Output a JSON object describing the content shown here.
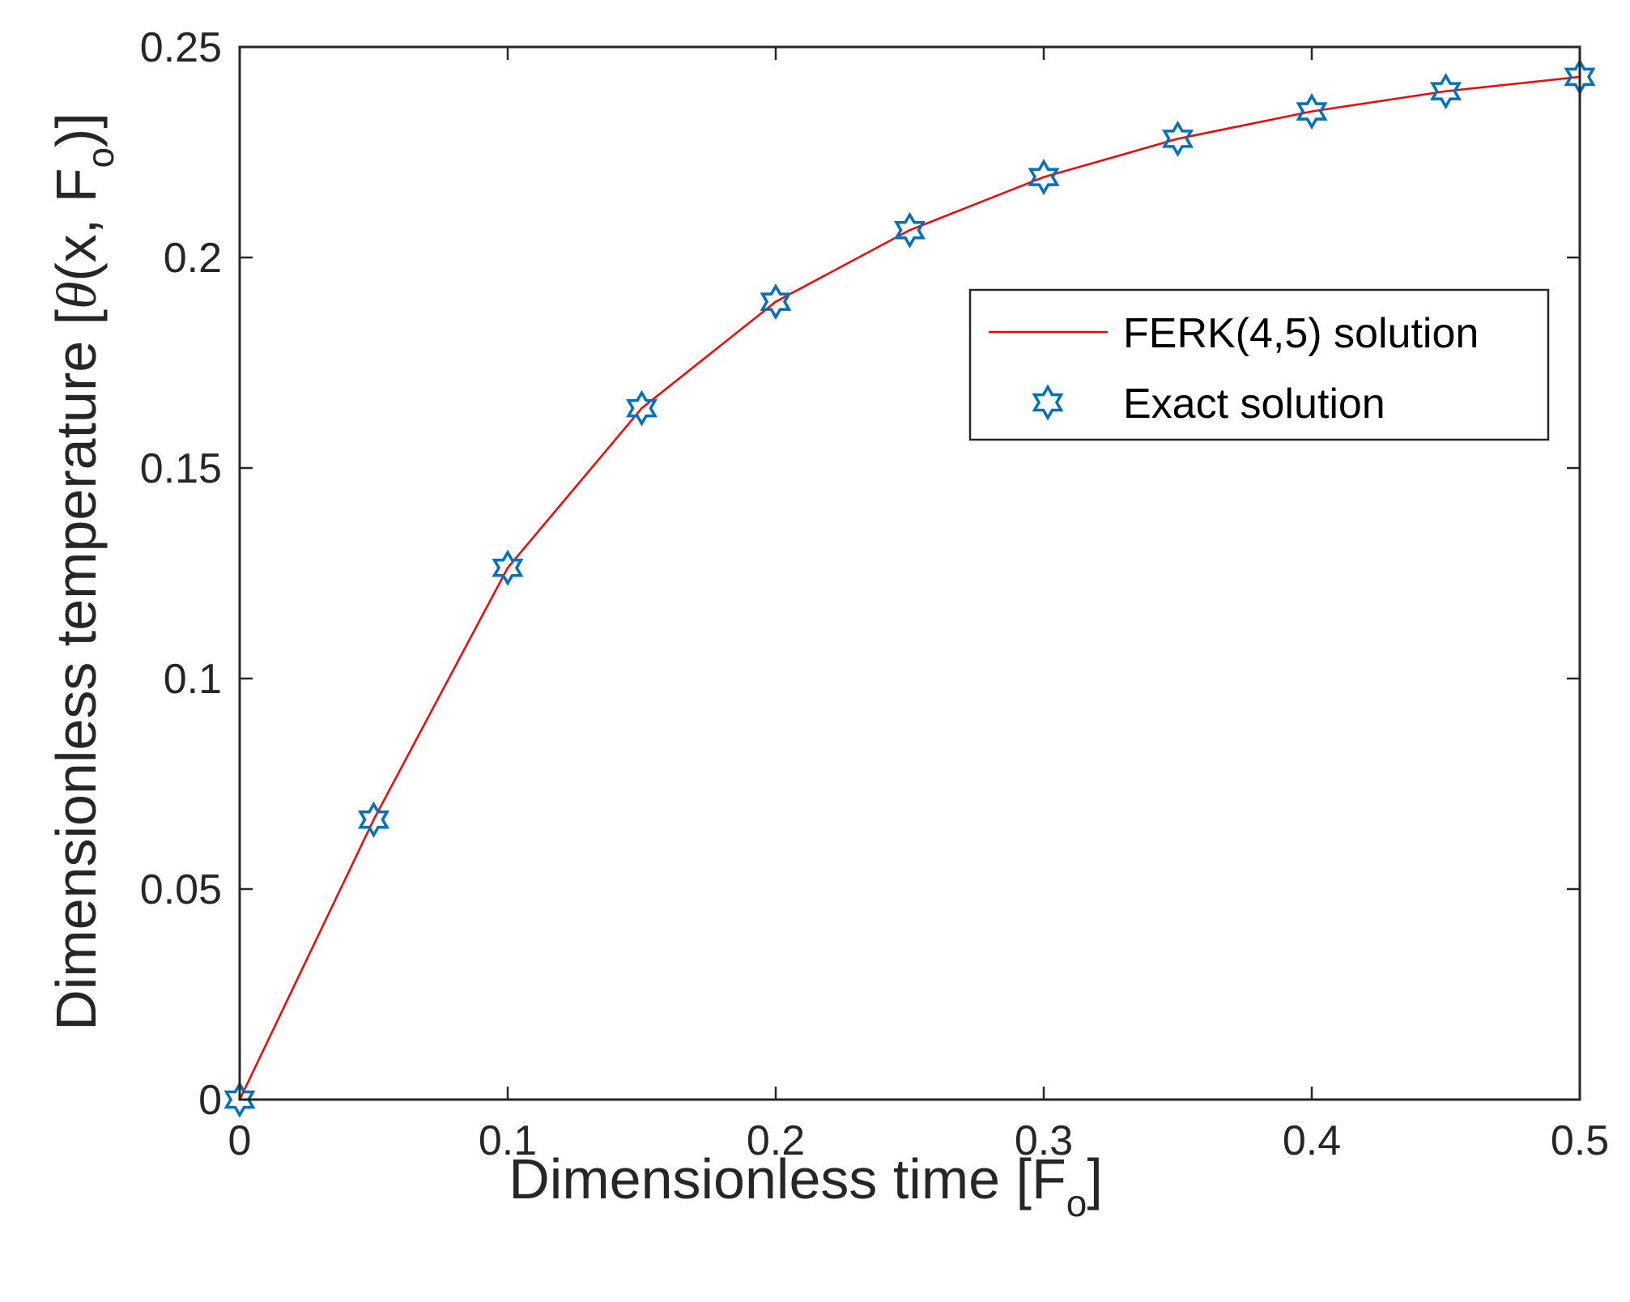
{
  "chart_data": {
    "type": "line",
    "xlabel": {
      "prefix": "Dimensionless time [F",
      "sub": "o",
      "suffix": "]"
    },
    "ylabel": {
      "prefix": "Dimensionless temperature [",
      "theta": "θ",
      "mid": "(x, F",
      "sub": "o",
      "suffix": ")]"
    },
    "xlim": [
      0,
      0.5
    ],
    "ylim": [
      0,
      0.25
    ],
    "xticks": [
      "0",
      "0.1",
      "0.2",
      "0.3",
      "0.4",
      "0.5"
    ],
    "yticks": [
      "0",
      "0.05",
      "0.1",
      "0.15",
      "0.2",
      "0.25"
    ],
    "grid": false,
    "legend_position": "top-right",
    "series": [
      {
        "name": "FERK(4,5) solution",
        "style": "line",
        "color": "#ff0000",
        "x": [
          0,
          0.05,
          0.1,
          0.15,
          0.2,
          0.25,
          0.3,
          0.35,
          0.4,
          0.45,
          0.5
        ],
        "y": [
          0,
          0.0665,
          0.1263,
          0.1642,
          0.1895,
          0.2065,
          0.2191,
          0.2282,
          0.2347,
          0.2395,
          0.2429
        ]
      },
      {
        "name": "Exact solution",
        "style": "hexagram-marker",
        "color": "#0072bd",
        "x": [
          0,
          0.05,
          0.1,
          0.15,
          0.2,
          0.25,
          0.3,
          0.35,
          0.4,
          0.45,
          0.5
        ],
        "y": [
          0,
          0.0665,
          0.1263,
          0.1642,
          0.1895,
          0.2065,
          0.2191,
          0.2282,
          0.2347,
          0.2395,
          0.2429
        ]
      }
    ]
  }
}
